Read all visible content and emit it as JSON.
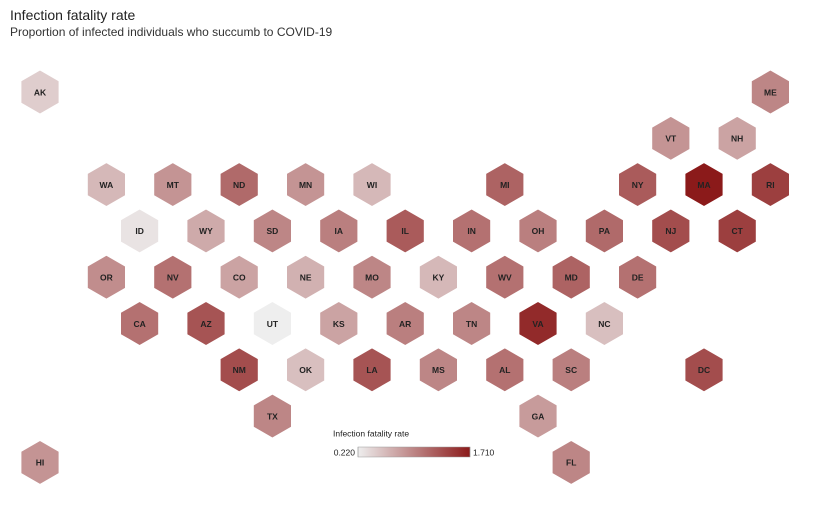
{
  "chart_data": {
    "type": "hexmap",
    "title": "Infection fatality rate",
    "subtitle": "Proportion of infected individuals who succumb to COVID-19",
    "categories": [
      "AK",
      "ME",
      "VT",
      "NH",
      "WA",
      "MT",
      "ND",
      "MN",
      "WI",
      "MI",
      "NY",
      "MA",
      "RI",
      "ID",
      "WY",
      "SD",
      "IA",
      "IL",
      "IN",
      "OH",
      "PA",
      "NJ",
      "CT",
      "OR",
      "NV",
      "CO",
      "NE",
      "MO",
      "KY",
      "WV",
      "MD",
      "DE",
      "CA",
      "AZ",
      "UT",
      "KS",
      "AR",
      "TN",
      "VA",
      "NC",
      "NM",
      "OK",
      "LA",
      "MS",
      "AL",
      "SC",
      "DC",
      "TX",
      "GA",
      "HI",
      "FL"
    ],
    "values": [
      0.45,
      0.95,
      0.85,
      0.75,
      0.6,
      0.85,
      1.15,
      0.85,
      0.6,
      1.2,
      1.25,
      1.71,
      1.45,
      0.3,
      0.7,
      0.95,
      1.0,
      1.25,
      1.1,
      1.0,
      1.15,
      1.35,
      1.45,
      0.9,
      1.1,
      0.75,
      0.65,
      0.95,
      0.6,
      1.1,
      1.2,
      1.1,
      1.1,
      1.3,
      0.22,
      0.75,
      1.0,
      0.95,
      1.6,
      0.55,
      1.35,
      0.55,
      1.3,
      0.95,
      1.1,
      1.0,
      1.35,
      0.95,
      0.8,
      0.85,
      0.95
    ],
    "color_range": [
      "#eeeeee",
      "#8b1a1a"
    ],
    "clim": [
      0.22,
      1.71
    ],
    "colorbar": {
      "label": "Infection fatality rate",
      "ticks": [
        {
          "value": 0.22,
          "label": "0.220"
        },
        {
          "value": 1.71,
          "label": "1.710"
        }
      ]
    }
  }
}
